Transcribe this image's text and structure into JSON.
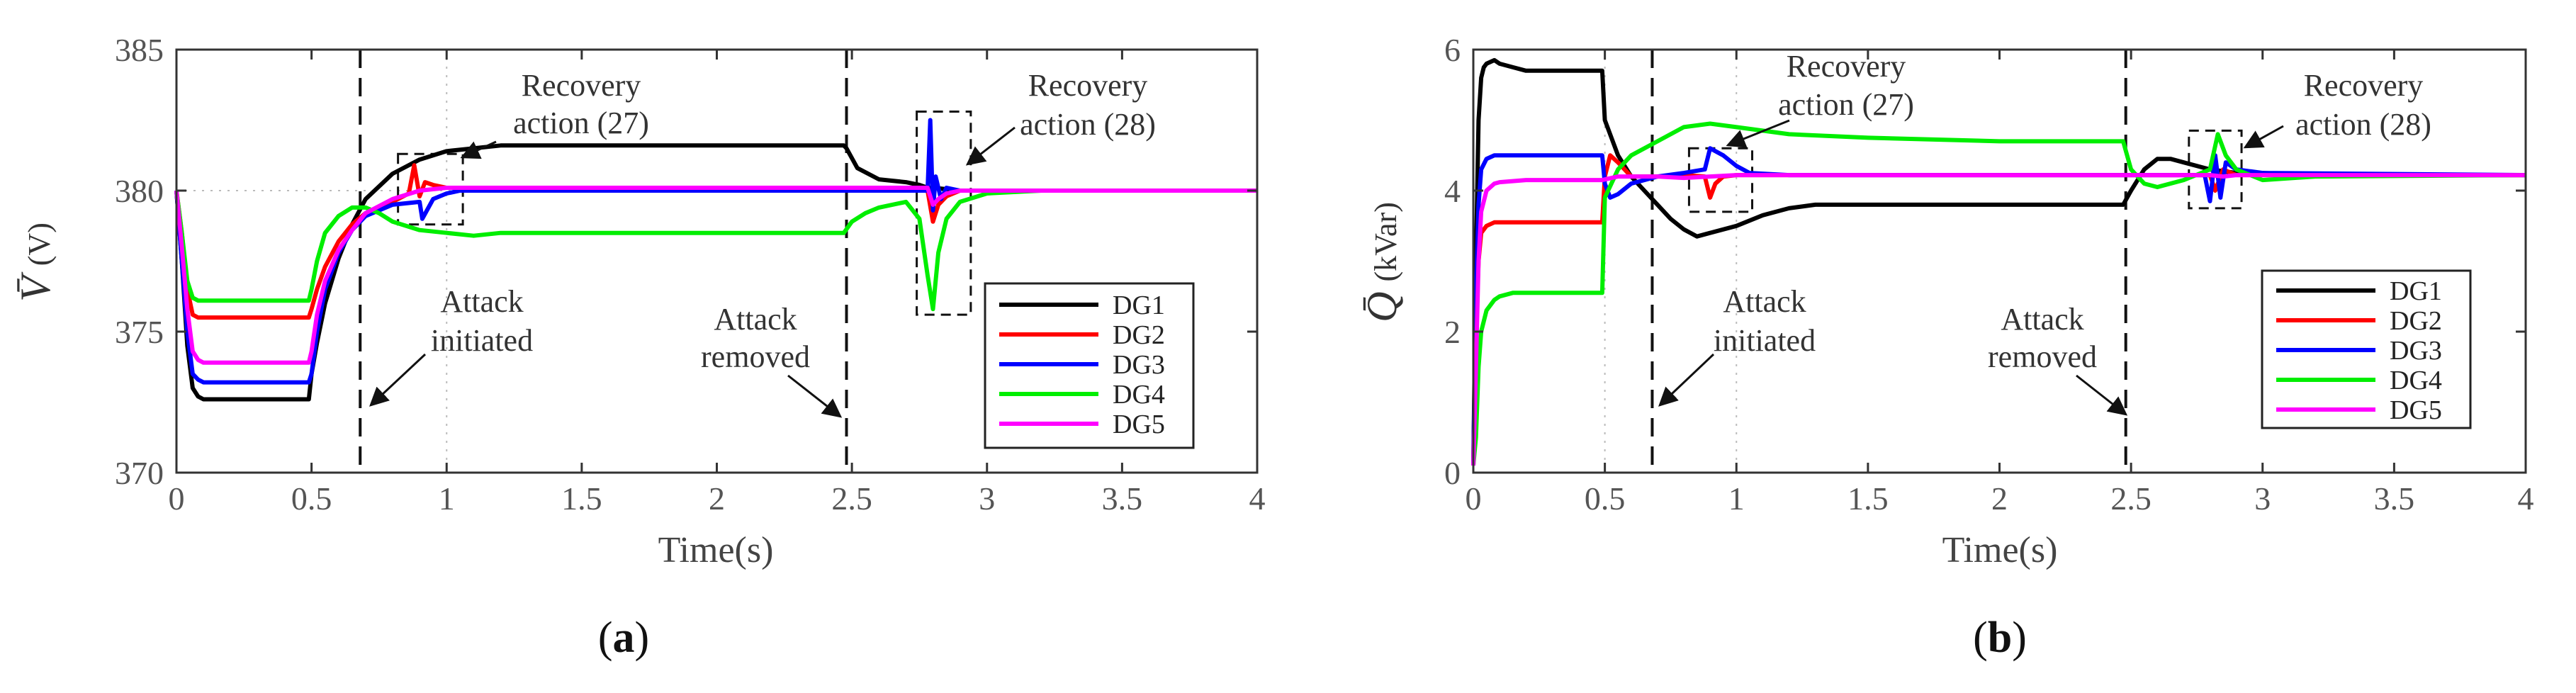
{
  "colors": {
    "DG1": "#000000",
    "DG2": "#ff0000",
    "DG3": "#0000ff",
    "DG4": "#00ee00",
    "DG5": "#ff00ff"
  },
  "chart_data": [
    {
      "type": "line",
      "panel_label": "a",
      "xlabel": "Time(s)",
      "ylabel_symbol": "V̄",
      "ylabel_unit": "(V)",
      "xlim": [
        0,
        4
      ],
      "ylim": [
        370,
        385
      ],
      "xticks": [
        0,
        0.5,
        1,
        1.5,
        2,
        2.5,
        3,
        3.5,
        4
      ],
      "xtick_labels": [
        "0",
        "0.5",
        "1",
        "1.5",
        "2",
        "2.5",
        "3",
        "3.5",
        "4"
      ],
      "yticks": [
        370,
        375,
        380,
        385
      ],
      "ytick_labels": [
        "370",
        "375",
        "380",
        "385"
      ],
      "reference_line": 380,
      "event_lines": [
        0.68,
        2.48
      ],
      "legend": [
        "DG1",
        "DG2",
        "DG3",
        "DG4",
        "DG5"
      ],
      "annotations": {
        "attack_initiated": [
          "Attack",
          "initiated"
        ],
        "attack_removed": [
          "Attack",
          "removed"
        ],
        "recovery_27": [
          "Recovery",
          "action (27)"
        ],
        "recovery_28": [
          "Recovery",
          "action (28)"
        ]
      },
      "recovery_box_27": {
        "x": [
          0.82,
          1.06
        ],
        "y": [
          378.8,
          381.3
        ]
      },
      "recovery_box_28": {
        "x": [
          2.74,
          2.94
        ],
        "y": [
          375.6,
          382.8
        ]
      },
      "series": [
        {
          "name": "DG1",
          "x": [
            0,
            0.02,
            0.04,
            0.06,
            0.08,
            0.1,
            0.15,
            0.2,
            0.3,
            0.4,
            0.49,
            0.5,
            0.52,
            0.55,
            0.6,
            0.65,
            0.7,
            0.8,
            0.9,
            1.0,
            1.2,
            1.5,
            2.0,
            2.47,
            2.48,
            2.52,
            2.6,
            2.7,
            2.75,
            2.78,
            2.8,
            2.85,
            2.9,
            3.0,
            3.2,
            3.5,
            4.0
          ],
          "y": [
            380,
            377.5,
            374.5,
            373,
            372.7,
            372.6,
            372.6,
            372.6,
            372.6,
            372.6,
            372.6,
            373.5,
            374.6,
            376,
            377.6,
            378.8,
            379.7,
            380.6,
            381.1,
            381.4,
            381.6,
            381.6,
            381.6,
            381.6,
            381.5,
            380.8,
            380.4,
            380.3,
            380.2,
            380.1,
            380.1,
            380.05,
            380.0,
            380.0,
            380.0,
            380.0,
            380.0
          ]
        },
        {
          "name": "DG2",
          "x": [
            0,
            0.02,
            0.04,
            0.06,
            0.08,
            0.1,
            0.2,
            0.3,
            0.4,
            0.49,
            0.5,
            0.52,
            0.55,
            0.6,
            0.65,
            0.7,
            0.8,
            0.86,
            0.88,
            0.9,
            0.92,
            0.95,
            1.0,
            1.2,
            1.5,
            2.0,
            2.47,
            2.5,
            2.7,
            2.78,
            2.8,
            2.82,
            2.85,
            2.9,
            3.0,
            3.2,
            4.0
          ],
          "y": [
            380,
            378.5,
            376.5,
            375.6,
            375.5,
            375.5,
            375.5,
            375.5,
            375.5,
            375.5,
            375.8,
            376.5,
            377.3,
            378.2,
            378.8,
            379.2,
            379.6,
            379.9,
            380.9,
            379.8,
            380.3,
            380.2,
            380.1,
            380.1,
            380.1,
            380.1,
            380.1,
            380.1,
            380.1,
            380.0,
            378.9,
            379.5,
            379.8,
            380.0,
            380.0,
            380.0,
            380.0
          ]
        },
        {
          "name": "DG3",
          "x": [
            0,
            0.02,
            0.04,
            0.06,
            0.08,
            0.1,
            0.2,
            0.3,
            0.4,
            0.49,
            0.5,
            0.52,
            0.55,
            0.6,
            0.65,
            0.7,
            0.8,
            0.9,
            0.91,
            0.95,
            1.0,
            1.05,
            1.2,
            1.5,
            2.0,
            2.47,
            2.6,
            2.78,
            2.79,
            2.8,
            2.81,
            2.83,
            2.85,
            2.9,
            3.0,
            4.0
          ],
          "y": [
            380,
            377.5,
            375,
            373.5,
            373.3,
            373.2,
            373.2,
            373.2,
            373.2,
            373.2,
            373.5,
            375,
            376.5,
            377.8,
            378.6,
            379.1,
            379.5,
            379.6,
            379.0,
            379.7,
            379.9,
            380.0,
            380.0,
            380.0,
            380.0,
            380.0,
            380.0,
            380.0,
            382.5,
            379.3,
            380.5,
            379.7,
            380.1,
            380.0,
            380.0,
            380.0
          ]
        },
        {
          "name": "DG4",
          "x": [
            0,
            0.02,
            0.04,
            0.06,
            0.08,
            0.1,
            0.2,
            0.3,
            0.4,
            0.49,
            0.5,
            0.52,
            0.55,
            0.6,
            0.65,
            0.7,
            0.75,
            0.8,
            0.9,
            1.0,
            1.1,
            1.2,
            1.5,
            2.0,
            2.47,
            2.5,
            2.55,
            2.6,
            2.7,
            2.75,
            2.78,
            2.8,
            2.82,
            2.85,
            2.9,
            3.0,
            3.2,
            4.0
          ],
          "y": [
            380,
            378.5,
            376.8,
            376.2,
            376.1,
            376.1,
            376.1,
            376.1,
            376.1,
            376.1,
            376.5,
            377.5,
            378.5,
            379.1,
            379.4,
            379.4,
            379.2,
            378.9,
            378.6,
            378.5,
            378.4,
            378.5,
            378.5,
            378.5,
            378.5,
            378.9,
            379.2,
            379.4,
            379.6,
            379.0,
            377.0,
            375.8,
            377.8,
            379.0,
            379.6,
            379.9,
            380.0,
            380.0
          ]
        },
        {
          "name": "DG5",
          "x": [
            0,
            0.02,
            0.04,
            0.06,
            0.08,
            0.1,
            0.2,
            0.3,
            0.4,
            0.49,
            0.5,
            0.52,
            0.55,
            0.6,
            0.65,
            0.7,
            0.8,
            0.9,
            1.0,
            1.2,
            1.5,
            2.0,
            2.5,
            2.78,
            2.8,
            2.82,
            2.85,
            2.9,
            3.0,
            4.0
          ],
          "y": [
            380,
            378,
            375.8,
            374.3,
            374.0,
            373.9,
            373.9,
            373.9,
            373.9,
            373.9,
            374.3,
            375.6,
            376.8,
            377.9,
            378.6,
            379.2,
            379.7,
            380.0,
            380.1,
            380.1,
            380.1,
            380.1,
            380.1,
            380.1,
            379.5,
            379.7,
            379.9,
            380.0,
            380.0,
            380.0
          ]
        }
      ]
    },
    {
      "type": "line",
      "panel_label": "b",
      "xlabel": "Time(s)",
      "ylabel_symbol": "Q̄",
      "ylabel_unit": "(kVar)",
      "xlim": [
        0,
        4
      ],
      "ylim": [
        0,
        6
      ],
      "xticks": [
        0,
        0.5,
        1,
        1.5,
        2,
        2.5,
        3,
        3.5,
        4
      ],
      "xtick_labels": [
        "0",
        "0.5",
        "1",
        "1.5",
        "2",
        "2.5",
        "3",
        "3.5",
        "4"
      ],
      "yticks": [
        0,
        2,
        4,
        6
      ],
      "ytick_labels": [
        "0",
        "2",
        "4",
        "6"
      ],
      "event_lines": [
        0.68,
        2.48
      ],
      "legend": [
        "DG1",
        "DG2",
        "DG3",
        "DG4",
        "DG5"
      ],
      "annotations": {
        "attack_initiated": [
          "Attack",
          "initiated"
        ],
        "attack_removed": [
          "Attack",
          "removed"
        ],
        "recovery_27": [
          "Recovery",
          "action (27)"
        ],
        "recovery_28": [
          "Recovery",
          "action (28)"
        ]
      },
      "recovery_box_27": {
        "x": [
          0.82,
          1.06
        ],
        "y": [
          3.7,
          4.6
        ]
      },
      "recovery_box_28": {
        "x": [
          2.72,
          2.92
        ],
        "y": [
          3.75,
          4.85
        ]
      },
      "series": [
        {
          "name": "DG1",
          "x": [
            0,
            0.01,
            0.02,
            0.03,
            0.04,
            0.05,
            0.08,
            0.1,
            0.15,
            0.2,
            0.3,
            0.4,
            0.49,
            0.5,
            0.55,
            0.6,
            0.65,
            0.7,
            0.75,
            0.8,
            0.85,
            0.9,
            1.0,
            1.1,
            1.2,
            1.3,
            1.5,
            2.0,
            2.47,
            2.5,
            2.55,
            2.6,
            2.65,
            2.7,
            2.8,
            2.9,
            3.0,
            3.2,
            4.0
          ],
          "y": [
            0.1,
            3.0,
            5.0,
            5.6,
            5.75,
            5.8,
            5.85,
            5.8,
            5.75,
            5.7,
            5.7,
            5.7,
            5.7,
            5.0,
            4.5,
            4.2,
            4.0,
            3.8,
            3.6,
            3.45,
            3.35,
            3.4,
            3.5,
            3.65,
            3.75,
            3.8,
            3.8,
            3.8,
            3.8,
            4.0,
            4.3,
            4.45,
            4.45,
            4.4,
            4.3,
            4.25,
            4.25,
            4.22,
            4.22
          ]
        },
        {
          "name": "DG2",
          "x": [
            0,
            0.01,
            0.02,
            0.03,
            0.05,
            0.08,
            0.1,
            0.2,
            0.3,
            0.4,
            0.49,
            0.5,
            0.52,
            0.55,
            0.6,
            0.7,
            0.8,
            0.88,
            0.9,
            0.92,
            0.95,
            1.0,
            1.2,
            1.5,
            2.0,
            2.47,
            2.6,
            2.8,
            2.82,
            2.85,
            2.9,
            3.0,
            4.0
          ],
          "y": [
            0.1,
            2.0,
            3.0,
            3.4,
            3.5,
            3.55,
            3.55,
            3.55,
            3.55,
            3.55,
            3.55,
            4.2,
            4.5,
            4.4,
            4.2,
            4.2,
            4.22,
            4.2,
            3.9,
            4.1,
            4.2,
            4.22,
            4.22,
            4.22,
            4.22,
            4.22,
            4.22,
            4.22,
            4.0,
            4.3,
            4.22,
            4.22,
            4.22
          ]
        },
        {
          "name": "DG3",
          "x": [
            0,
            0.01,
            0.02,
            0.03,
            0.05,
            0.08,
            0.1,
            0.2,
            0.3,
            0.4,
            0.49,
            0.5,
            0.52,
            0.55,
            0.6,
            0.7,
            0.8,
            0.88,
            0.9,
            0.95,
            1.0,
            1.05,
            1.2,
            1.5,
            2.0,
            2.47,
            2.6,
            2.78,
            2.8,
            2.82,
            2.84,
            2.86,
            2.9,
            3.0,
            4.0
          ],
          "y": [
            0.1,
            2.5,
            3.8,
            4.3,
            4.45,
            4.5,
            4.5,
            4.5,
            4.5,
            4.5,
            4.5,
            4.1,
            3.9,
            3.95,
            4.1,
            4.2,
            4.25,
            4.3,
            4.6,
            4.5,
            4.35,
            4.25,
            4.22,
            4.22,
            4.22,
            4.22,
            4.22,
            4.22,
            3.85,
            4.5,
            3.9,
            4.4,
            4.3,
            4.25,
            4.22
          ]
        },
        {
          "name": "DG4",
          "x": [
            0,
            0.01,
            0.02,
            0.03,
            0.05,
            0.08,
            0.1,
            0.15,
            0.2,
            0.3,
            0.4,
            0.49,
            0.5,
            0.55,
            0.6,
            0.7,
            0.8,
            0.9,
            1.0,
            1.2,
            1.5,
            2.0,
            2.47,
            2.5,
            2.55,
            2.6,
            2.7,
            2.8,
            2.83,
            2.86,
            2.9,
            3.0,
            3.2,
            4.0
          ],
          "y": [
            0.1,
            0.5,
            1.5,
            2.0,
            2.3,
            2.45,
            2.5,
            2.55,
            2.55,
            2.55,
            2.55,
            2.55,
            3.9,
            4.3,
            4.5,
            4.7,
            4.9,
            4.95,
            4.9,
            4.8,
            4.75,
            4.7,
            4.7,
            4.3,
            4.1,
            4.05,
            4.15,
            4.3,
            4.8,
            4.5,
            4.3,
            4.15,
            4.2,
            4.22
          ]
        },
        {
          "name": "DG5",
          "x": [
            0,
            0.01,
            0.02,
            0.03,
            0.05,
            0.08,
            0.1,
            0.2,
            0.3,
            0.4,
            0.49,
            0.55,
            0.6,
            0.7,
            0.8,
            0.9,
            1.0,
            1.2,
            1.5,
            2.0,
            2.47,
            2.6,
            2.8,
            2.85,
            2.9,
            3.0,
            4.0
          ],
          "y": [
            0.1,
            1.5,
            3.0,
            3.7,
            4.0,
            4.1,
            4.12,
            4.15,
            4.15,
            4.15,
            4.15,
            4.2,
            4.2,
            4.2,
            4.18,
            4.2,
            4.22,
            4.22,
            4.22,
            4.22,
            4.22,
            4.22,
            4.22,
            4.2,
            4.22,
            4.22,
            4.22
          ]
        }
      ]
    }
  ]
}
